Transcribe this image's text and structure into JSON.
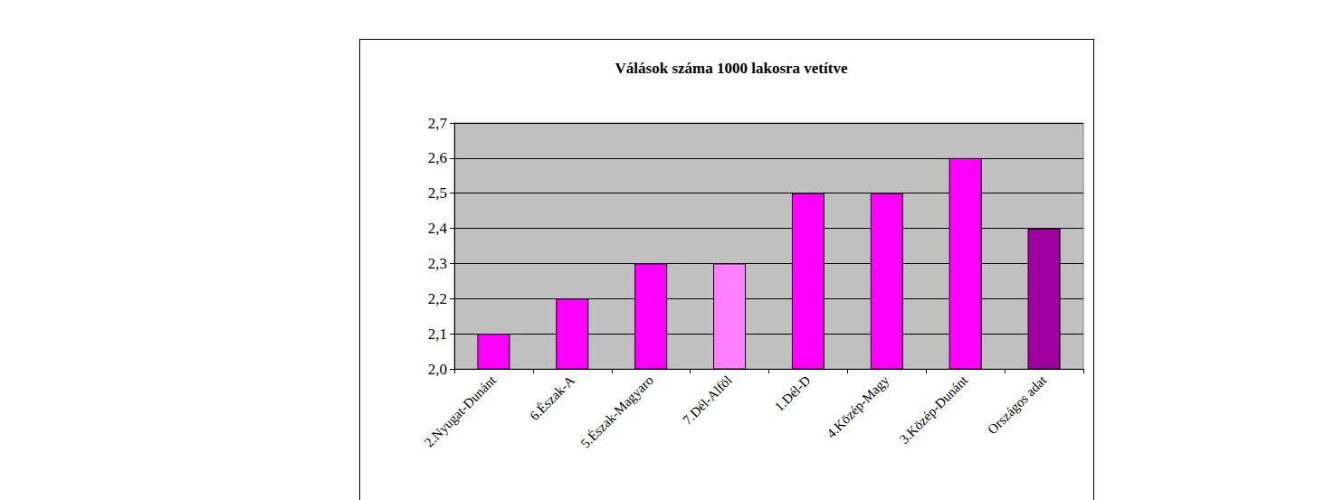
{
  "chart_data": {
    "type": "bar",
    "title": "Válások száma 1000 lakosra vetítve",
    "categories": [
      "2.Nyugat-Dunánt",
      "6.Észak-A",
      "5.Észak-Magyaro",
      "7.Dél-Alföl",
      "1.Dél-D",
      "4.Közép-Magy",
      "3.Közép-Dunánt",
      "Országos adat"
    ],
    "values": [
      2.1,
      2.2,
      2.3,
      2.3,
      2.5,
      2.5,
      2.6,
      2.4
    ],
    "colors": [
      "#ff00ff",
      "#ff00ff",
      "#ff00ff",
      "#ff80ff",
      "#ff00ff",
      "#ff00ff",
      "#ff00ff",
      "#a000a0"
    ],
    "ylim": [
      2.0,
      2.7
    ],
    "yticks": [
      {
        "value": 2.0,
        "label": "2,0"
      },
      {
        "value": 2.1,
        "label": "2,1"
      },
      {
        "value": 2.2,
        "label": "2,2"
      },
      {
        "value": 2.3,
        "label": "2,3"
      },
      {
        "value": 2.4,
        "label": "2,4"
      },
      {
        "value": 2.5,
        "label": "2,5"
      },
      {
        "value": 2.6,
        "label": "2,6"
      },
      {
        "value": 2.7,
        "label": "2,7"
      }
    ],
    "grid": true
  }
}
